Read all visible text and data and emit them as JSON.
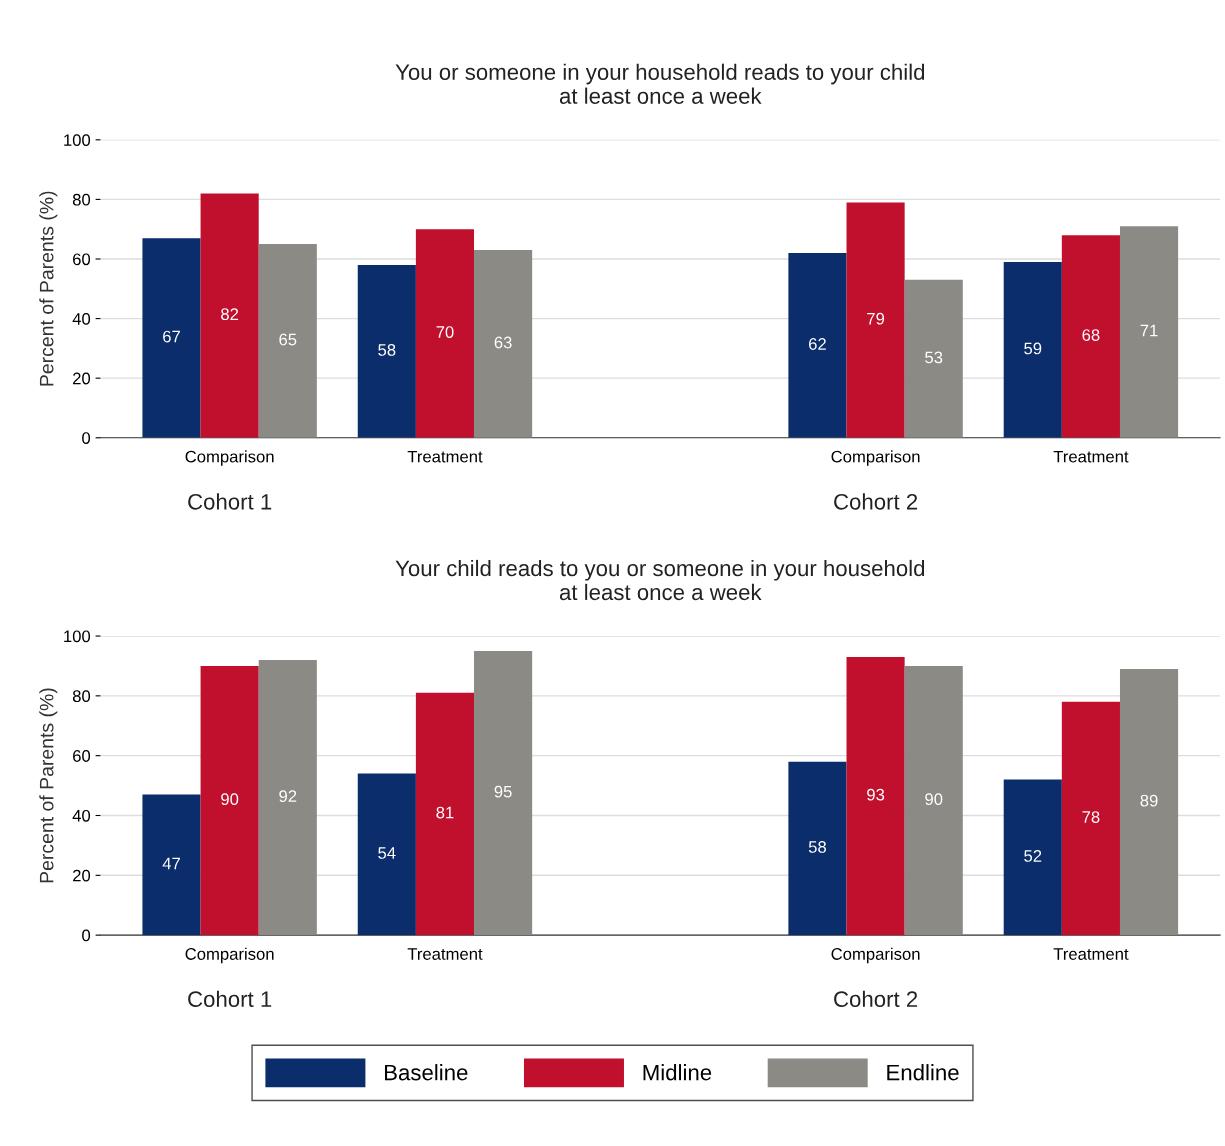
{
  "chart_data": [
    {
      "type": "bar",
      "title": "You or someone in your household reads to your child\nat least once a week",
      "ylabel": "Percent of Parents (%)",
      "categories": [
        "Comparison",
        "Treatment",
        null,
        "Comparison",
        "Treatment"
      ],
      "series": [
        {
          "name": "Baseline",
          "color": "#0b2d6b",
          "values": [
            67,
            58,
            null,
            62,
            59
          ]
        },
        {
          "name": "Midline",
          "color": "#c0102e",
          "values": [
            82,
            70,
            null,
            79,
            68
          ]
        },
        {
          "name": "Endline",
          "color": "#8c8a84",
          "values": [
            65,
            63,
            null,
            53,
            71
          ]
        }
      ],
      "annotations": [
        "Cohort 1",
        "Cohort 2"
      ],
      "ylim": [
        0,
        100
      ],
      "yticks": [
        0,
        20,
        40,
        60,
        80,
        100
      ],
      "grid": "y",
      "data_labels": true,
      "legend": "bottom"
    },
    {
      "type": "bar",
      "title": "Your child reads to you or someone in your household\nat least once a week",
      "ylabel": "Percent of Parents (%)",
      "categories": [
        "Comparison",
        "Treatment",
        null,
        "Comparison",
        "Treatment"
      ],
      "series": [
        {
          "color": "#0b2d6b",
          "values": [
            47,
            54,
            null,
            58,
            52
          ]
        },
        {
          "color": "#c0102e",
          "values": [
            90,
            81,
            null,
            93,
            78
          ]
        },
        {
          "color": "#8c8a84",
          "values": [
            92,
            95,
            null,
            90,
            89
          ]
        }
      ],
      "annotations": [
        "Cohort 1",
        "Cohort 2"
      ],
      "ylim": [
        0,
        100
      ],
      "yticks": [
        0,
        20,
        40,
        60,
        80,
        100
      ],
      "grid": "y",
      "data_labels": true
    }
  ]
}
